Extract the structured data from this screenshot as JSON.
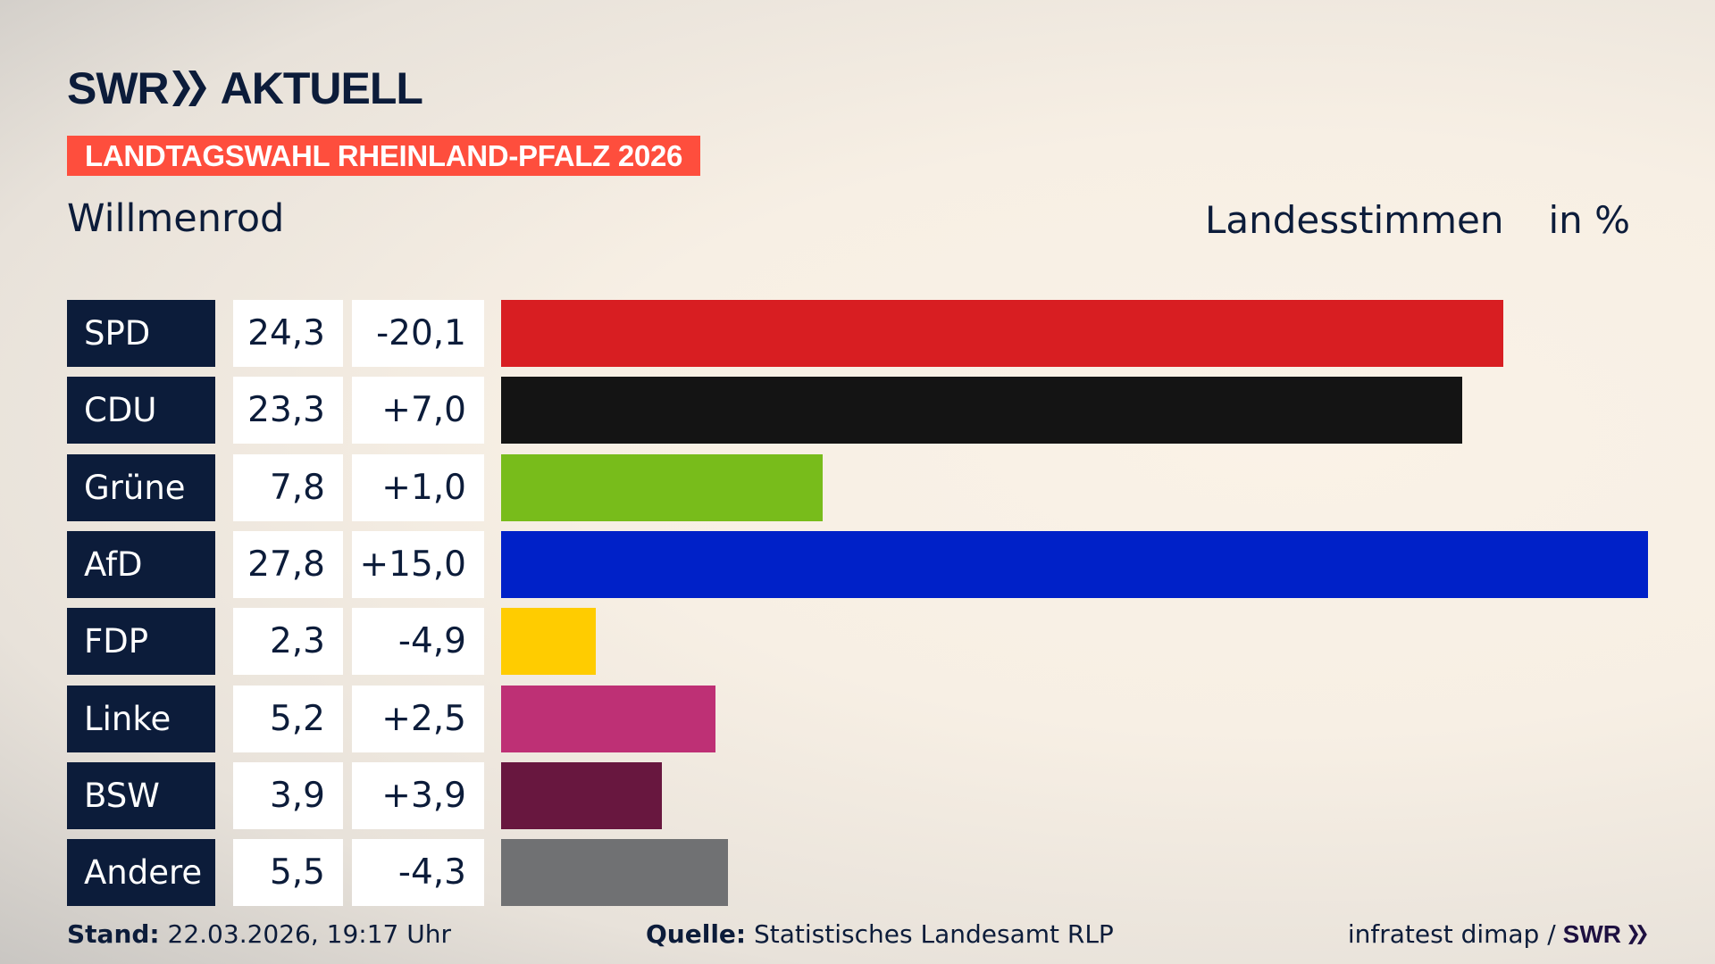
{
  "header": {
    "brand": "SWR",
    "brand_suffix": "AKTUELL",
    "banner": "LANDTAGSWAHL RHEINLAND-PFALZ 2026",
    "location": "Willmenrod",
    "vote_type": "Landesstimmen",
    "unit": "in %"
  },
  "chart_data": {
    "type": "bar",
    "orientation": "horizontal",
    "xlim": [
      0,
      27.8
    ],
    "categories": [
      "SPD",
      "CDU",
      "Grüne",
      "AfD",
      "FDP",
      "Linke",
      "BSW",
      "Andere"
    ],
    "values": [
      24.3,
      23.3,
      7.8,
      27.8,
      2.3,
      5.2,
      3.9,
      5.5
    ],
    "value_labels": [
      "24,3",
      "23,3",
      "7,8",
      "27,8",
      "2,3",
      "5,2",
      "3,9",
      "5,5"
    ],
    "change_labels": [
      "-20,1",
      "+7,0",
      "+1,0",
      "+15,0",
      "-4,9",
      "+2,5",
      "+3,9",
      "-4,3"
    ],
    "changes": [
      -20.1,
      7.0,
      1.0,
      15.0,
      -4.9,
      2.5,
      3.9,
      -4.3
    ],
    "colors": [
      "#d81e22",
      "#141414",
      "#78bc1b",
      "#0021c8",
      "#ffcc00",
      "#be3075",
      "#68173f",
      "#707173"
    ]
  },
  "footer": {
    "stand_label": "Stand:",
    "stand_value": "22.03.2026, 19:17 Uhr",
    "source_label": "Quelle:",
    "source_value": "Statistisches Landesamt RLP",
    "credit": "infratest dimap /",
    "credit_brand": "SWR"
  },
  "colors": {
    "navy": "#0c1c3a",
    "banner": "#fe4e3d"
  }
}
